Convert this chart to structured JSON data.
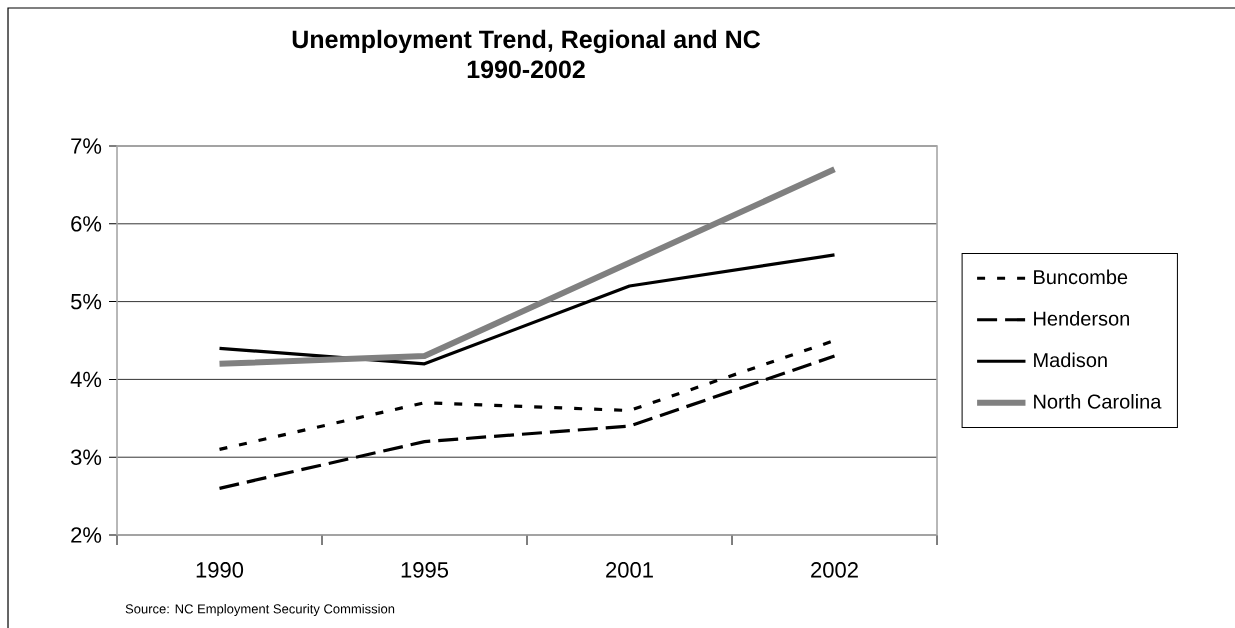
{
  "chart_data": {
    "type": "line",
    "title": "Unemployment Trend, Regional and NC",
    "subtitle": "1990-2002",
    "categories": [
      "1990",
      "1995",
      "2001",
      "2002"
    ],
    "series": [
      {
        "name": "Buncombe",
        "color": "#000000",
        "line_style": "dotted",
        "values": [
          3.1,
          3.7,
          3.6,
          4.5
        ]
      },
      {
        "name": "Henderson",
        "color": "#000000",
        "line_style": "dashed",
        "values": [
          2.6,
          3.2,
          3.4,
          4.3
        ]
      },
      {
        "name": "Madison",
        "color": "#000000",
        "line_style": "solid",
        "values": [
          4.4,
          4.2,
          5.2,
          5.6
        ]
      },
      {
        "name": "North Carolina",
        "color": "#808080",
        "line_style": "solid",
        "values": [
          4.2,
          4.3,
          5.5,
          6.7
        ]
      }
    ],
    "ylim": [
      2,
      7
    ],
    "yticks": [
      {
        "value": 2,
        "label": "2%"
      },
      {
        "value": 3,
        "label": "3%"
      },
      {
        "value": 4,
        "label": "4%"
      },
      {
        "value": 5,
        "label": "5%"
      },
      {
        "value": 6,
        "label": "6%"
      },
      {
        "value": 7,
        "label": "7%"
      }
    ],
    "grid": "y",
    "legend": "right",
    "annotations": [
      "Source: NC Employment Security Commission"
    ]
  }
}
